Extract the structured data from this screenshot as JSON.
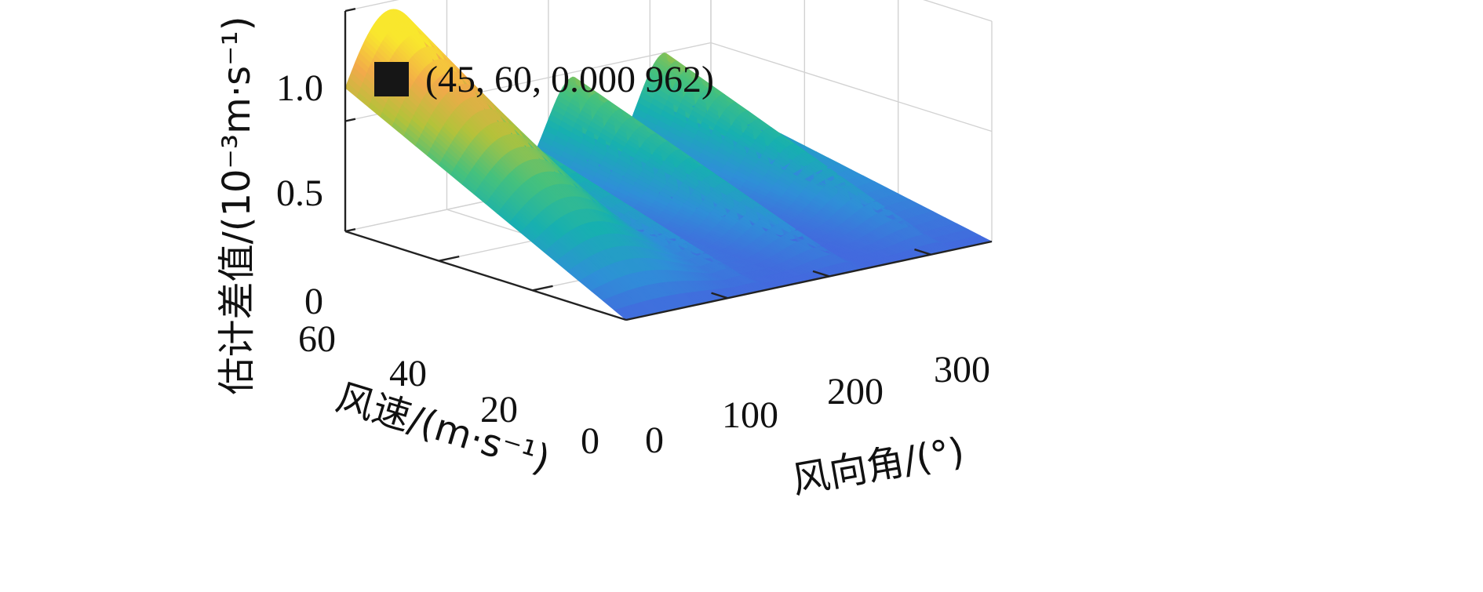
{
  "chart_data": {
    "type": "surface3d",
    "title": "",
    "xlabel": "风向角/(°)",
    "ylabel": "风速/(m·s⁻¹)",
    "zlabel": "估计差值/(10⁻³m·s⁻¹)",
    "xlim": [
      0,
      360
    ],
    "ylim": [
      0,
      60
    ],
    "zlim": [
      0,
      1.0
    ],
    "x_ticks": [
      "0",
      "100",
      "200",
      "300"
    ],
    "y_ticks": [
      "0",
      "20",
      "40",
      "60"
    ],
    "z_ticks": [
      "0",
      "0.5",
      "1.0"
    ],
    "colormap": [
      "#3e26a8",
      "#4a5ce0",
      "#2f8fd8",
      "#17b0b0",
      "#45c17d",
      "#b4c23a",
      "#f2a94a",
      "#f9e72d"
    ],
    "ridges": [
      {
        "wind_direction": 45,
        "peak_at_max_speed": 0.962
      },
      {
        "wind_direction": 135,
        "peak_at_max_speed": 0.4
      },
      {
        "wind_direction": 225,
        "peak_at_max_speed": 0.48
      },
      {
        "wind_direction": 315,
        "peak_at_max_speed": 0.5
      }
    ],
    "edge_value_at_max_speed": 0.37,
    "annotation": {
      "point": [
        45,
        60,
        0.000962
      ],
      "text": "(45, 60, 0.000 962)"
    }
  }
}
